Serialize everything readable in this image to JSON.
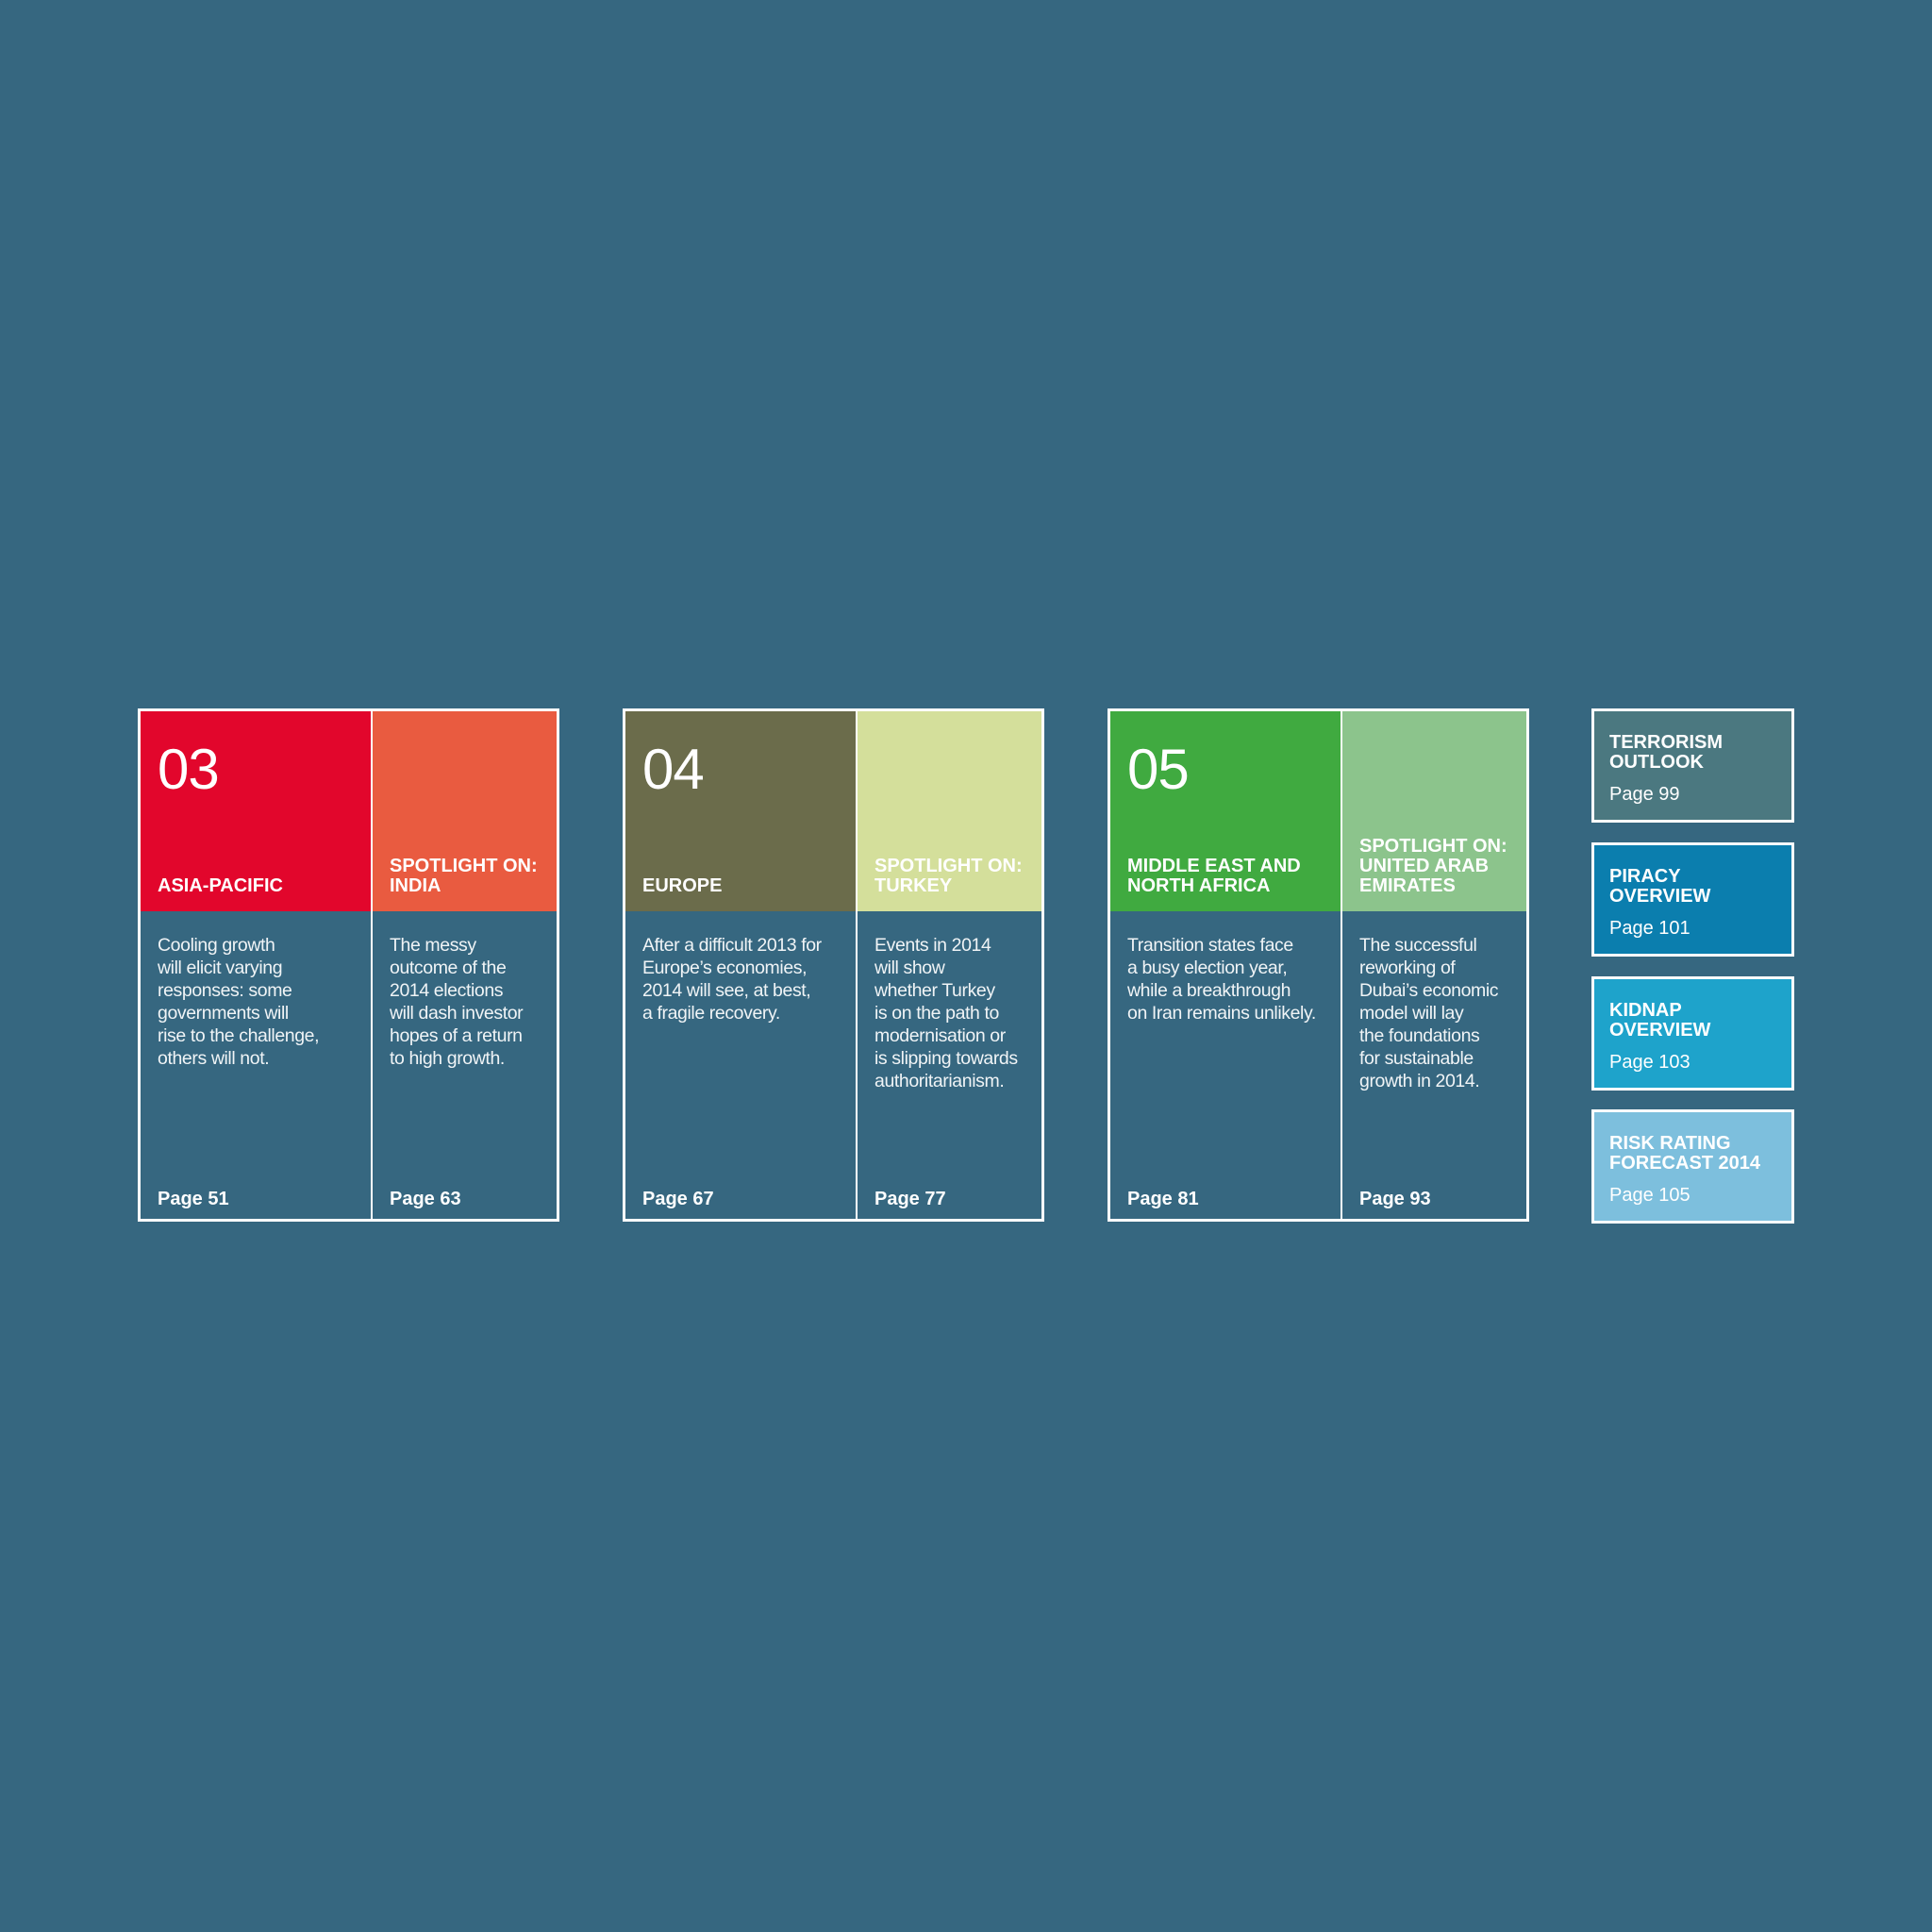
{
  "colors": {
    "background": "#366780",
    "asia_pacific": "#e2062c",
    "india": "#e95b40",
    "europe": "#6b6c4b",
    "turkey": "#d4df9b",
    "mena": "#40aa40",
    "uae": "#8cc48c",
    "terrorism": "#4b7880",
    "piracy": "#0b7eae",
    "kidnap": "#1ea3cb",
    "risk_rating": "#7dbfdd"
  },
  "sections": [
    {
      "number": "03",
      "main": {
        "title": "ASIA-PACIFIC",
        "description": "Cooling growth\nwill elicit varying\nresponses: some\ngovernments will\nrise to the challenge,\nothers will not.",
        "page": "Page 51"
      },
      "spotlight": {
        "title": "SPOTLIGHT ON:\nINDIA",
        "description": "The messy\noutcome of the\n2014 elections\nwill dash investor\nhopes of a return\nto high growth.",
        "page": "Page 63"
      }
    },
    {
      "number": "04",
      "main": {
        "title": "EUROPE",
        "description": "After a difficult 2013 for\nEurope’s economies,\n2014 will see, at best,\na fragile recovery.",
        "page": "Page 67"
      },
      "spotlight": {
        "title": "SPOTLIGHT ON:\nTURKEY",
        "description": "Events in 2014\nwill show\nwhether Turkey\nis on the path to\nmodernisation or\nis slipping towards\nauthoritarianism.",
        "page": "Page 77"
      }
    },
    {
      "number": "05",
      "main": {
        "title": "MIDDLE EAST AND\nNORTH AFRICA",
        "description": "Transition states face\na busy election year,\nwhile a breakthrough\non Iran remains unlikely.",
        "page": "Page 81"
      },
      "spotlight": {
        "title": "SPOTLIGHT ON:\nUNITED ARAB\nEMIRATES",
        "description": "The successful\nreworking of\nDubai’s economic\nmodel will lay\nthe foundations\nfor sustainable\ngrowth in 2014.",
        "page": "Page 93"
      }
    }
  ],
  "side_boxes": [
    {
      "title": "TERRORISM\nOUTLOOK",
      "page": "Page 99"
    },
    {
      "title": "PIRACY\nOVERVIEW",
      "page": "Page 101"
    },
    {
      "title": "KIDNAP\nOVERVIEW",
      "page": "Page 103"
    },
    {
      "title": "RISK RATING\nFORECAST 2014",
      "page": "Page 105"
    }
  ]
}
